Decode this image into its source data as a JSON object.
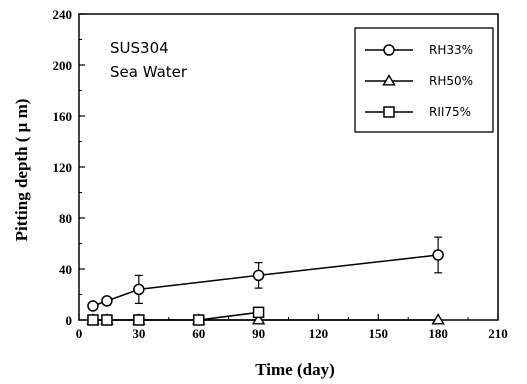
{
  "chart_data": {
    "type": "line",
    "xlabel": "Time (day)",
    "ylabel": "Pitting depth ( μ m)",
    "xlim": [
      0,
      210
    ],
    "ylim": [
      0,
      240
    ],
    "x_ticks": [
      0,
      30,
      60,
      90,
      120,
      150,
      180,
      210
    ],
    "y_ticks": [
      0,
      40,
      80,
      120,
      160,
      200,
      240
    ],
    "annotations": [
      "SUS304",
      "Sea Water"
    ],
    "legend_position": "top-right",
    "grid": false,
    "series": [
      {
        "name": "RH33%",
        "marker": "circle",
        "x": [
          7,
          14,
          30,
          90,
          180
        ],
        "y": [
          11,
          15,
          24,
          35,
          51
        ],
        "error": [
          0,
          0,
          11,
          10,
          14
        ]
      },
      {
        "name": "RH50%",
        "marker": "triangle",
        "x": [
          7,
          14,
          30,
          60,
          90,
          180
        ],
        "y": [
          0,
          0,
          0,
          0,
          0,
          0
        ]
      },
      {
        "name": "RII75%",
        "marker": "square",
        "x": [
          7,
          14,
          30,
          60,
          90
        ],
        "y": [
          0,
          0,
          0,
          0,
          6
        ]
      }
    ]
  }
}
